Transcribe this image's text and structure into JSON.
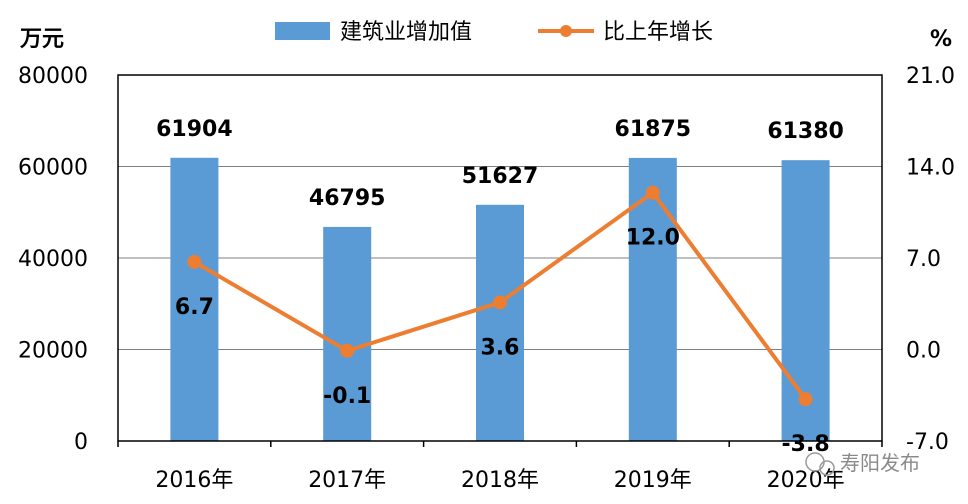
{
  "chart_data": {
    "type": "bar+line",
    "categories": [
      "2016年",
      "2017年",
      "2018年",
      "2019年",
      "2020年"
    ],
    "series": [
      {
        "name": "建筑业增加值",
        "kind": "bar",
        "axis": "left",
        "color": "#5b9bd5",
        "values": [
          61904,
          46795,
          51627,
          61875,
          61380
        ],
        "labels": [
          "61904",
          "46795",
          "51627",
          "61875",
          "61380"
        ]
      },
      {
        "name": "比上年增长",
        "kind": "line",
        "axis": "right",
        "color": "#ed7d31",
        "values": [
          6.7,
          -0.1,
          3.6,
          12.0,
          -3.8
        ],
        "labels": [
          "6.7",
          "-0.1",
          "3.6",
          "12.0",
          "-3.8"
        ]
      }
    ],
    "y_left": {
      "unit": "万元",
      "min": 0,
      "max": 80000,
      "ticks": [
        "0",
        "20000",
        "40000",
        "60000",
        "80000"
      ]
    },
    "y_right": {
      "unit": "%",
      "min": -7.0,
      "max": 21.0,
      "ticks": [
        "-7.0",
        "0.0",
        "7.0",
        "14.0",
        "21.0"
      ]
    },
    "grid": true,
    "legend": "top-center"
  },
  "watermark": {
    "text": "寿阳发布"
  }
}
